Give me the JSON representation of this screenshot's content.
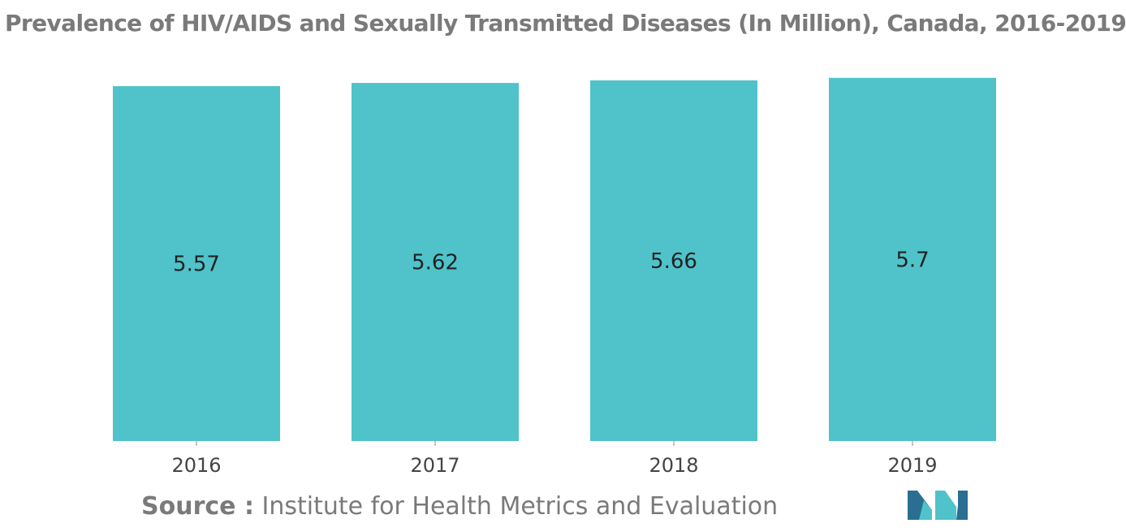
{
  "chart_data": {
    "type": "bar",
    "title": "Prevalence of HIV/AIDS and Sexually Transmitted Diseases (In Million), Canada, 2016-2019",
    "categories": [
      "2016",
      "2017",
      "2018",
      "2019"
    ],
    "values": [
      5.57,
      5.62,
      5.66,
      5.7
    ],
    "data_labels": [
      "5.57",
      "5.62",
      "5.66",
      "5.7"
    ],
    "xlabel": "",
    "ylabel": "",
    "ylim": [
      0,
      5.8
    ],
    "grid": false,
    "legend": "none",
    "bar_color": "#4fc3c9"
  },
  "source": {
    "prefix": "Source :",
    "text": "Institute for Health Metrics and Evaluation"
  },
  "logo": {
    "icon": "mordor-intelligence-logo-icon",
    "colors": [
      "#2a6f91",
      "#4fc3c9"
    ]
  }
}
